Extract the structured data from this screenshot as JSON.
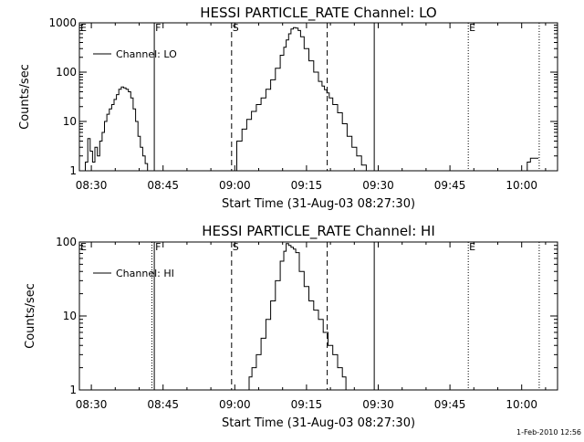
{
  "footer": "1-Feb-2010 12:56",
  "chart_data": [
    {
      "type": "line",
      "title": "HESSI PARTICLE_RATE Channel: LO",
      "xlabel": "Start Time (31-Aug-03 08:27:30)",
      "ylabel": "Counts/sec",
      "yscale": "log",
      "ylim": [
        1,
        1000
      ],
      "xlim": [
        "08:27:30",
        "10:07:30"
      ],
      "x_ticks": [
        "08:30",
        "08:45",
        "09:00",
        "09:15",
        "09:30",
        "09:45",
        "10:00"
      ],
      "y_ticks": [
        "1",
        "10",
        "100",
        "1000"
      ],
      "legend": {
        "position": "top-left",
        "entries": [
          "Channel: LO"
        ]
      },
      "markers": [
        {
          "label": "E",
          "time": "08:27:30",
          "style": "dotted"
        },
        {
          "label": "F",
          "time": "08:43:10",
          "style": "solid"
        },
        {
          "label": "S",
          "time": "08:59:20",
          "style": "dashed"
        },
        {
          "label": "",
          "time": "09:19:20",
          "style": "dashed"
        },
        {
          "label": "",
          "time": "09:29:10",
          "style": "solid"
        },
        {
          "label": "E",
          "time": "09:48:50",
          "style": "dotted"
        },
        {
          "label": "",
          "time": "10:03:40",
          "style": "dotted"
        }
      ],
      "series": [
        {
          "name": "Channel: LO",
          "segments": [
            {
              "x": [
                "08:28:30",
                "08:29:00",
                "08:29:30",
                "08:30:00",
                "08:30:30",
                "08:31:00",
                "08:31:30",
                "08:32:00",
                "08:32:30",
                "08:33:00",
                "08:33:30",
                "08:34:00",
                "08:34:30",
                "08:35:00",
                "08:35:30",
                "08:36:00",
                "08:36:30",
                "08:37:00",
                "08:37:30",
                "08:38:00",
                "08:38:30",
                "08:39:00",
                "08:39:30",
                "08:40:00",
                "08:40:30",
                "08:41:00",
                "08:41:30",
                "08:42:00"
              ],
              "y": [
                1,
                1.5,
                4.5,
                2.5,
                1.5,
                3,
                2,
                4,
                6,
                10,
                14,
                18,
                22,
                28,
                35,
                45,
                50,
                48,
                45,
                40,
                30,
                18,
                10,
                5,
                3,
                2,
                1.4,
                1
              ]
            },
            {
              "x": [
                "08:59:50",
                "09:01:00",
                "09:02:00",
                "09:03:00",
                "09:04:00",
                "09:05:00",
                "09:06:00",
                "09:07:00",
                "09:08:00",
                "09:09:00",
                "09:10:00",
                "09:10:30",
                "09:11:00",
                "09:11:30",
                "09:12:00",
                "09:12:30",
                "09:13:00",
                "09:13:30",
                "09:14:00",
                "09:15:00",
                "09:16:00",
                "09:17:00",
                "09:18:00",
                "09:18:30",
                "09:19:00",
                "09:19:30",
                "09:20:00",
                "09:21:00",
                "09:22:00",
                "09:23:00",
                "09:24:00",
                "09:25:00",
                "09:26:00",
                "09:27:00",
                "09:28:00"
              ],
              "y": [
                1,
                4,
                7,
                11,
                16,
                22,
                30,
                45,
                70,
                120,
                220,
                320,
                450,
                600,
                750,
                800,
                780,
                700,
                520,
                300,
                170,
                100,
                65,
                52,
                44,
                38,
                30,
                22,
                15,
                9,
                5,
                3,
                2,
                1.3,
                1
              ]
            },
            {
              "x": [
                "10:01:00",
                "10:01:20",
                "10:01:40",
                "10:02:00",
                "10:03:30"
              ],
              "y": [
                1,
                1.5,
                1.5,
                1.8,
                1.8
              ]
            }
          ]
        }
      ]
    },
    {
      "type": "line",
      "title": "HESSI PARTICLE_RATE Channel: HI",
      "xlabel": "Start Time (31-Aug-03 08:27:30)",
      "ylabel": "Counts/sec",
      "yscale": "log",
      "ylim": [
        1,
        100
      ],
      "xlim": [
        "08:27:30",
        "10:07:30"
      ],
      "x_ticks": [
        "08:30",
        "08:45",
        "09:00",
        "09:15",
        "09:30",
        "09:45",
        "10:00"
      ],
      "y_ticks": [
        "1",
        "10",
        "100"
      ],
      "legend": {
        "position": "top-left",
        "entries": [
          "Channel: HI"
        ]
      },
      "markers": [
        {
          "label": "E",
          "time": "08:27:30",
          "style": "dotted"
        },
        {
          "label": "",
          "time": "08:42:40",
          "style": "dotted"
        },
        {
          "label": "F",
          "time": "08:43:10",
          "style": "solid"
        },
        {
          "label": "S",
          "time": "08:59:20",
          "style": "dashed"
        },
        {
          "label": "",
          "time": "09:19:20",
          "style": "dashed"
        },
        {
          "label": "",
          "time": "09:29:10",
          "style": "solid"
        },
        {
          "label": "E",
          "time": "09:48:50",
          "style": "dotted"
        },
        {
          "label": "",
          "time": "10:03:40",
          "style": "dotted"
        }
      ],
      "series": [
        {
          "name": "Channel: HI",
          "segments": [
            {
              "x": [
                "09:02:50",
                "09:03:10",
                "09:04:00",
                "09:05:00",
                "09:06:00",
                "09:07:00",
                "09:08:00",
                "09:09:00",
                "09:10:00",
                "09:10:30",
                "09:11:00",
                "09:11:30",
                "09:12:00",
                "09:12:30",
                "09:13:00",
                "09:14:00",
                "09:15:00",
                "09:16:00",
                "09:17:00",
                "09:18:00",
                "09:19:00",
                "09:20:00",
                "09:21:00",
                "09:22:00",
                "09:23:00",
                "09:23:30"
              ],
              "y": [
                1,
                1.5,
                2,
                3,
                5,
                9,
                16,
                30,
                55,
                75,
                95,
                90,
                85,
                80,
                72,
                40,
                25,
                16,
                12,
                9,
                6,
                4,
                3,
                2,
                1.5,
                1
              ]
            }
          ]
        }
      ]
    }
  ]
}
